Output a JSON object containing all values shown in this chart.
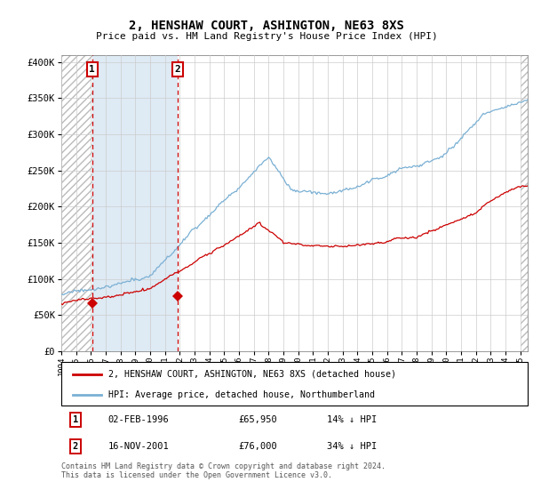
{
  "title": "2, HENSHAW COURT, ASHINGTON, NE63 8XS",
  "subtitle": "Price paid vs. HM Land Registry's House Price Index (HPI)",
  "sale1_date": "02-FEB-1996",
  "sale1_price": 65950,
  "sale1_label": "1",
  "sale1_year": 1996.08,
  "sale2_date": "16-NOV-2001",
  "sale2_price": 76000,
  "sale2_label": "2",
  "sale2_year": 2001.87,
  "legend_line1": "2, HENSHAW COURT, ASHINGTON, NE63 8XS (detached house)",
  "legend_line2": "HPI: Average price, detached house, Northumberland",
  "footer": "Contains HM Land Registry data © Crown copyright and database right 2024.\nThis data is licensed under the Open Government Licence v3.0.",
  "red_color": "#cc0000",
  "blue_color": "#7ab0d4",
  "hatch_edgecolor": "#bbbbbb",
  "shaded_color": "#deeaf4",
  "xlim": [
    1994.0,
    2025.5
  ],
  "ylim": [
    0,
    410000
  ],
  "yticks": [
    0,
    50000,
    100000,
    150000,
    200000,
    250000,
    300000,
    350000,
    400000
  ],
  "xtick_years": [
    1994,
    1995,
    1996,
    1997,
    1998,
    1999,
    2000,
    2001,
    2002,
    2003,
    2004,
    2005,
    2006,
    2007,
    2008,
    2009,
    2010,
    2011,
    2012,
    2013,
    2014,
    2015,
    2016,
    2017,
    2018,
    2019,
    2020,
    2021,
    2022,
    2023,
    2024,
    2025
  ]
}
